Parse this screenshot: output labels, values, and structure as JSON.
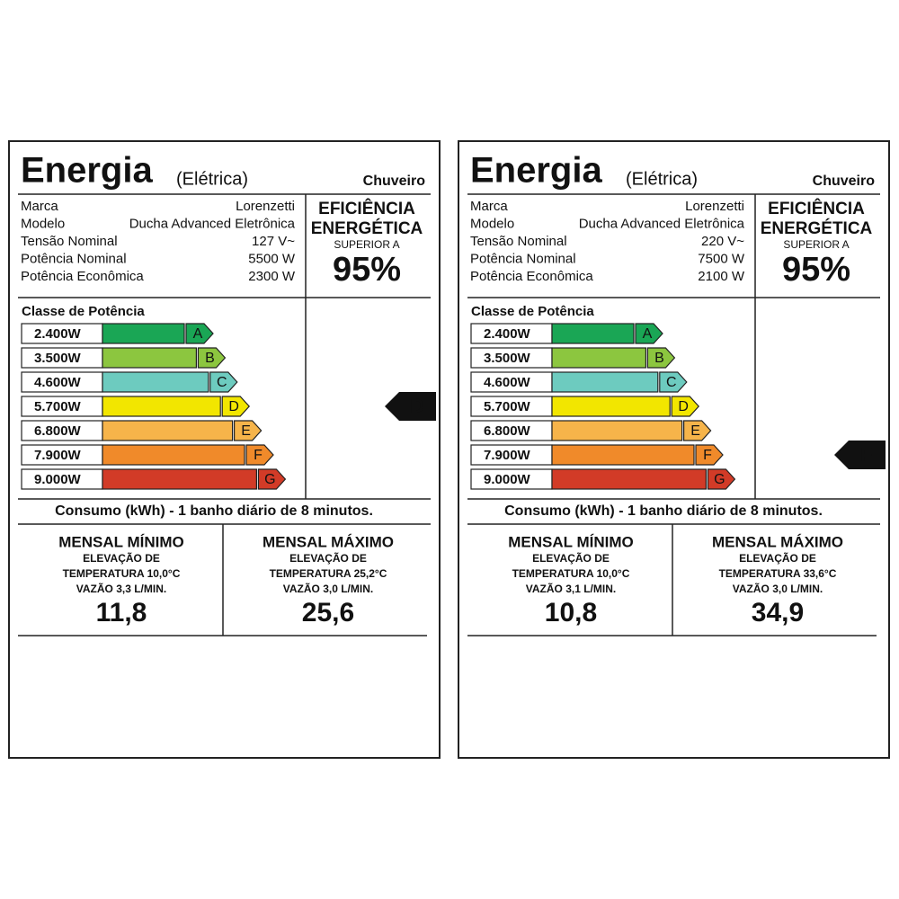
{
  "labels": [
    {
      "title": "Energia",
      "subtitle": "(Elétrica)",
      "product": "Chuveiro",
      "fields": [
        {
          "label": "Marca",
          "value": "Lorenzetti"
        },
        {
          "label": "Modelo",
          "value": "Ducha Advanced Eletrônica"
        },
        {
          "label": "Tensão Nominal",
          "value": "127 V~"
        },
        {
          "label": "Potência Nominal",
          "value": "5500 W"
        },
        {
          "label": "Potência Econômica",
          "value": "2300 W"
        }
      ],
      "efficiency": {
        "line1": "EFICIÊNCIA",
        "line2": "ENERGÉTICA",
        "line3": "SUPERIOR A",
        "value": "95%"
      },
      "classes": {
        "title": "Classe de Potência",
        "rows": [
          {
            "power": "2.400W",
            "letter": "A",
            "color": "#1aa655"
          },
          {
            "power": "3.500W",
            "letter": "B",
            "color": "#8cc63f"
          },
          {
            "power": "4.600W",
            "letter": "C",
            "color": "#6dcbbf"
          },
          {
            "power": "5.700W",
            "letter": "D",
            "color": "#f2e600"
          },
          {
            "power": "6.800W",
            "letter": "E",
            "color": "#f6b44a"
          },
          {
            "power": "7.900W",
            "letter": "F",
            "color": "#f08a2a"
          },
          {
            "power": "9.000W",
            "letter": "G",
            "color": "#d23b27"
          }
        ]
      },
      "rating": "D",
      "consumption": {
        "title": "Consumo (kWh) - 1 banho diário de 8 minutos.",
        "columns": [
          {
            "heading": "MENSAL MÍNIMO",
            "lines": [
              "ELEVAÇÃO DE",
              "TEMPERATURA 10,0°C",
              "VAZÃO 3,3 L/MIN."
            ],
            "value": "11,8"
          },
          {
            "heading": "MENSAL MÁXIMO",
            "lines": [
              "ELEVAÇÃO DE",
              "TEMPERATURA 25,2°C",
              "VAZÃO 3,0 L/MIN."
            ],
            "value": "25,6"
          }
        ]
      }
    },
    {
      "title": "Energia",
      "subtitle": "(Elétrica)",
      "product": "Chuveiro",
      "fields": [
        {
          "label": "Marca",
          "value": "Lorenzetti"
        },
        {
          "label": "Modelo",
          "value": "Ducha Advanced Eletrônica"
        },
        {
          "label": "Tensão Nominal",
          "value": "220 V~"
        },
        {
          "label": "Potência Nominal",
          "value": "7500 W"
        },
        {
          "label": "Potência Econômica",
          "value": "2100 W"
        }
      ],
      "efficiency": {
        "line1": "EFICIÊNCIA",
        "line2": "ENERGÉTICA",
        "line3": "SUPERIOR A",
        "value": "95%"
      },
      "classes": {
        "title": "Classe de Potência",
        "rows": [
          {
            "power": "2.400W",
            "letter": "A",
            "color": "#1aa655"
          },
          {
            "power": "3.500W",
            "letter": "B",
            "color": "#8cc63f"
          },
          {
            "power": "4.600W",
            "letter": "C",
            "color": "#6dcbbf"
          },
          {
            "power": "5.700W",
            "letter": "D",
            "color": "#f2e600"
          },
          {
            "power": "6.800W",
            "letter": "E",
            "color": "#f6b44a"
          },
          {
            "power": "7.900W",
            "letter": "F",
            "color": "#f08a2a"
          },
          {
            "power": "9.000W",
            "letter": "G",
            "color": "#d23b27"
          }
        ]
      },
      "rating": "F",
      "consumption": {
        "title": "Consumo (kWh) - 1 banho diário de 8 minutos.",
        "columns": [
          {
            "heading": "MENSAL MÍNIMO",
            "lines": [
              "ELEVAÇÃO DE",
              "TEMPERATURA 10,0°C",
              "VAZÃO 3,1 L/MIN."
            ],
            "value": "10,8"
          },
          {
            "heading": "MENSAL MÁXIMO",
            "lines": [
              "ELEVAÇÃO DE",
              "TEMPERATURA 33,6°C",
              "VAZÃO 3,0 L/MIN."
            ],
            "value": "34,9"
          }
        ]
      }
    }
  ]
}
